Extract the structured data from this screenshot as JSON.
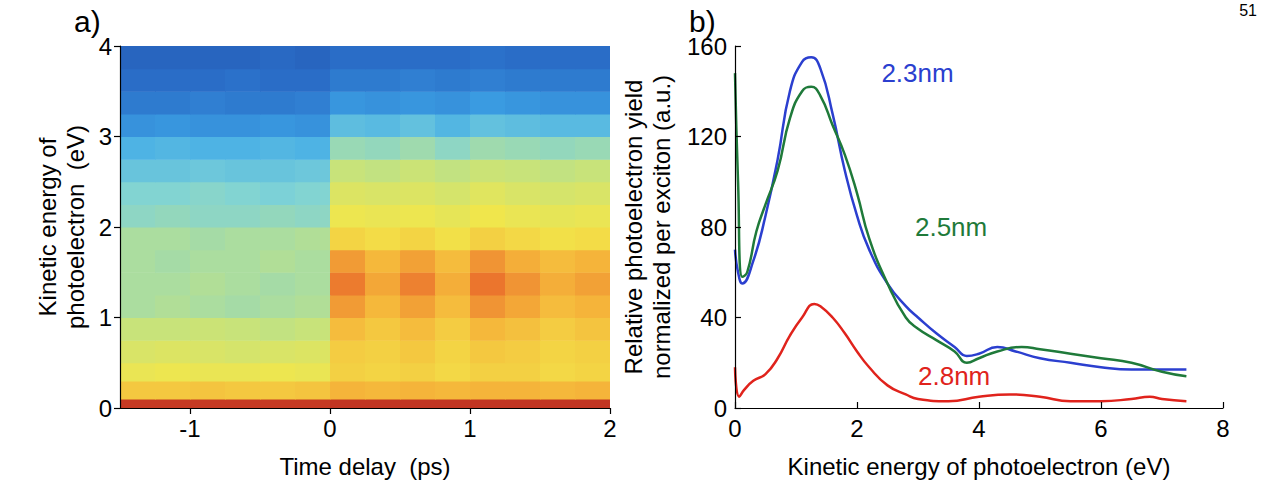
{
  "page_number": "51",
  "chart_data": [
    {
      "type": "heatmap",
      "panel": "a)",
      "xlabel": "Time delay  (ps)",
      "ylabel": "Kinetic energy of photoelectron  (eV)",
      "xlim": [
        -1.5,
        2
      ],
      "xticks": [
        -1,
        0,
        1,
        2
      ],
      "ylim": [
        0,
        4
      ],
      "yticks": [
        0,
        1,
        2,
        3,
        4
      ],
      "grid": false,
      "x_bins": [
        -1.5,
        -1.25,
        -1,
        -0.75,
        -0.5,
        -0.25,
        0,
        0.25,
        0.5,
        0.75,
        1,
        1.25,
        1.5,
        1.75,
        2
      ],
      "y_bins": [
        0,
        0.1,
        0.3,
        0.5,
        0.75,
        1,
        1.25,
        1.5,
        1.75,
        2,
        2.25,
        2.5,
        2.75,
        3,
        3.25,
        3.5,
        3.75,
        4
      ],
      "zlim": [
        0,
        10
      ],
      "values": [
        [
          9.5,
          9.5,
          9.5,
          9.5,
          9.5,
          9.5,
          9.6,
          9.6,
          9.6,
          9.6,
          9.6,
          9.6,
          9.6,
          9.6
        ],
        [
          7,
          7,
          7.1,
          7,
          7,
          7.1,
          7.5,
          7.4,
          7.5,
          7.4,
          7.5,
          7.5,
          7.4,
          7.5
        ],
        [
          6,
          6.1,
          6,
          6,
          6.1,
          6,
          6.8,
          6.7,
          6.8,
          6.6,
          6.8,
          6.8,
          6.6,
          6.7
        ],
        [
          5.5,
          5.6,
          5.5,
          5.4,
          5.5,
          5.6,
          6.9,
          6.8,
          7,
          6.7,
          7,
          6.9,
          6.7,
          6.8
        ],
        [
          5,
          5,
          5.1,
          5,
          4.9,
          5,
          7.3,
          7,
          7.3,
          6.9,
          7.4,
          7.2,
          6.9,
          7.1
        ],
        [
          4.5,
          4.6,
          4.5,
          4.4,
          4.5,
          4.6,
          7.9,
          7.4,
          7.8,
          7.3,
          8,
          7.7,
          7.3,
          7.5
        ],
        [
          4.5,
          4.5,
          4.6,
          4.5,
          4.4,
          4.5,
          8.4,
          7.7,
          8.3,
          7.6,
          8.5,
          8,
          7.6,
          7.8
        ],
        [
          4.5,
          4.4,
          4.5,
          4.5,
          4.6,
          4.5,
          7.9,
          7.4,
          7.8,
          7.3,
          8,
          7.6,
          7.3,
          7.5
        ],
        [
          4.5,
          4.5,
          4.4,
          4.5,
          4.5,
          4.6,
          6.7,
          6.5,
          6.7,
          6.4,
          6.8,
          6.6,
          6.4,
          6.5
        ],
        [
          4,
          4.1,
          4,
          4,
          4.1,
          4,
          6.1,
          6,
          6.1,
          5.9,
          6.2,
          6,
          5.9,
          6
        ],
        [
          3.8,
          3.8,
          3.9,
          3.8,
          3.7,
          3.8,
          5.6,
          5.5,
          5.6,
          5.4,
          5.7,
          5.5,
          5.4,
          5.5
        ],
        [
          3.3,
          3.3,
          3.4,
          3.3,
          3.3,
          3.4,
          5,
          4.9,
          5.1,
          4.9,
          5.1,
          5,
          4.9,
          5
        ],
        [
          2.8,
          2.9,
          2.8,
          2.8,
          2.9,
          2.8,
          4.2,
          4.1,
          4.3,
          4,
          4.3,
          4.2,
          4.1,
          4.2
        ],
        [
          2,
          2.1,
          2,
          2,
          2.1,
          2,
          3.1,
          3,
          3.2,
          2.9,
          3.2,
          3.1,
          3,
          3
        ],
        [
          1.5,
          1.5,
          1.6,
          1.5,
          1.5,
          1.6,
          2.1,
          2,
          2.1,
          2,
          2.2,
          2.1,
          2,
          2
        ],
        [
          1.2,
          1.2,
          1.2,
          1.3,
          1.2,
          1.2,
          1.5,
          1.5,
          1.6,
          1.5,
          1.6,
          1.5,
          1.5,
          1.5
        ],
        [
          1,
          1,
          1,
          1,
          1.1,
          1,
          1.2,
          1.2,
          1.2,
          1.2,
          1.3,
          1.2,
          1.2,
          1.2
        ]
      ]
    },
    {
      "type": "line",
      "panel": "b)",
      "xlabel": "Kinetic energy of photoelectron (eV)",
      "ylabel": "Relative photoelectron yield normalized per exciton (a.u.)",
      "xlim": [
        0,
        8
      ],
      "xticks": [
        0,
        2,
        4,
        6,
        8
      ],
      "ylim": [
        0,
        160
      ],
      "yticks": [
        0,
        40,
        80,
        120,
        160
      ],
      "grid": false,
      "series": [
        {
          "name": "2.3nm",
          "color": "#2b3fcf",
          "line_style": "solid",
          "x": [
            0,
            0.05,
            0.12,
            0.3,
            0.5,
            0.7,
            0.9,
            1.1,
            1.25,
            1.4,
            1.6,
            1.8,
            2.0,
            2.2,
            2.5,
            2.8,
            3.0,
            3.3,
            3.6,
            3.8,
            4.0,
            4.3,
            4.6,
            5.0,
            5.5,
            6.0,
            6.5,
            7.0,
            7.4
          ],
          "values": [
            70,
            60,
            55,
            65,
            85,
            110,
            140,
            153,
            155,
            150,
            130,
            105,
            85,
            70,
            55,
            45,
            40,
            33,
            27,
            23,
            24,
            27,
            25,
            22,
            20,
            18,
            17,
            17,
            17
          ]
        },
        {
          "name": "2.5nm",
          "color": "#1f7a3a",
          "line_style": "solid",
          "x": [
            0,
            0.05,
            0.12,
            0.2,
            0.35,
            0.5,
            0.7,
            0.9,
            1.1,
            1.25,
            1.4,
            1.6,
            1.8,
            2.0,
            2.2,
            2.5,
            2.8,
            3.0,
            3.3,
            3.6,
            3.8,
            4.0,
            4.3,
            4.7,
            5.0,
            5.5,
            6.0,
            6.5,
            7.0,
            7.4
          ],
          "values": [
            148,
            100,
            58,
            60,
            78,
            90,
            105,
            128,
            140,
            142,
            138,
            125,
            112,
            95,
            75,
            55,
            40,
            35,
            30,
            25,
            20,
            22,
            25,
            27,
            26,
            24,
            22,
            20,
            16,
            14
          ]
        },
        {
          "name": "2.8nm",
          "color": "#e0231c",
          "line_style": "solid",
          "x": [
            0,
            0.07,
            0.15,
            0.3,
            0.5,
            0.7,
            0.9,
            1.1,
            1.3,
            1.4,
            1.6,
            1.8,
            2.0,
            2.2,
            2.5,
            2.8,
            3.0,
            3.5,
            4.0,
            4.5,
            5.0,
            5.5,
            6.0,
            6.5,
            6.8,
            7.0,
            7.4
          ],
          "values": [
            18,
            5,
            8,
            12,
            15,
            22,
            32,
            40,
            46,
            45,
            40,
            33,
            25,
            18,
            10,
            6,
            4,
            3,
            5,
            6,
            5,
            3,
            3,
            4,
            5,
            4,
            3
          ]
        }
      ]
    }
  ]
}
